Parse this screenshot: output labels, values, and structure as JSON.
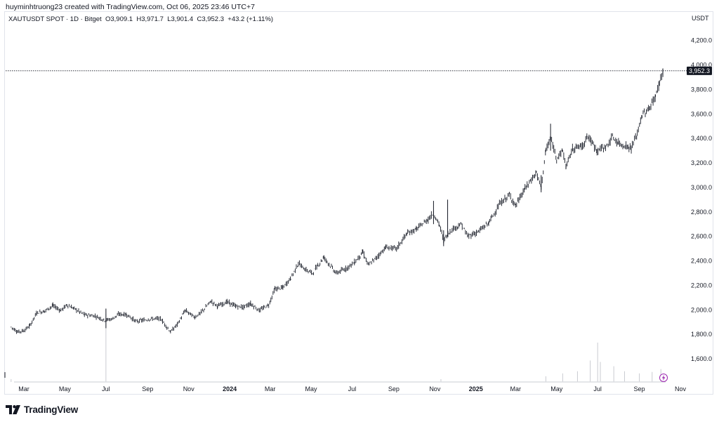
{
  "header": {
    "author_line": "huyminhtruong23 created with TradingView.com, Oct 06, 2025 23:46 UTC+7",
    "symbol": "XAUTUSDT SPOT · 1D · Bitget",
    "open": "O3,909.1",
    "high": "H3,971.7",
    "low": "L3,901.4",
    "close": "C3,952.3",
    "change": "+43.2 (+1.11%)"
  },
  "footer": {
    "brand": "TradingView"
  },
  "colors": {
    "candle": "#131722",
    "price_label_bg": "#131722",
    "volume": "#c9cbd1",
    "flash_icon": "#9c27b0"
  },
  "icons": {
    "brand_logo": "tradingview-logo-icon",
    "flash": "lightning-icon"
  },
  "chart_data": {
    "type": "line",
    "title": "",
    "currency": "USDT",
    "yticks": [
      "4,200.0",
      "4,000.0",
      "3,800.0",
      "3,600.0",
      "3,400.0",
      "3,200.0",
      "3,000.0",
      "2,800.0",
      "2,600.0",
      "2,400.0",
      "2,200.0",
      "2,000.0",
      "1,800.0",
      "1,600.0"
    ],
    "ytick_values": [
      4200,
      4000,
      3800,
      3600,
      3400,
      3200,
      3000,
      2800,
      2600,
      2400,
      2200,
      2000,
      1800,
      1600
    ],
    "ylim": [
      1475,
      4430
    ],
    "xticks": [
      {
        "label": "Mar",
        "bold": false,
        "date": "2023-03-01"
      },
      {
        "label": "May",
        "bold": false,
        "date": "2023-05-01"
      },
      {
        "label": "Jul",
        "bold": false,
        "date": "2023-07-01"
      },
      {
        "label": "Sep",
        "bold": false,
        "date": "2023-09-01"
      },
      {
        "label": "Nov",
        "bold": false,
        "date": "2023-11-01"
      },
      {
        "label": "2024",
        "bold": true,
        "date": "2024-01-01"
      },
      {
        "label": "Mar",
        "bold": false,
        "date": "2024-03-01"
      },
      {
        "label": "May",
        "bold": false,
        "date": "2024-05-01"
      },
      {
        "label": "Jul",
        "bold": false,
        "date": "2024-07-01"
      },
      {
        "label": "Sep",
        "bold": false,
        "date": "2024-09-01"
      },
      {
        "label": "Nov",
        "bold": false,
        "date": "2024-11-01"
      },
      {
        "label": "2025",
        "bold": true,
        "date": "2025-01-01"
      },
      {
        "label": "Mar",
        "bold": false,
        "date": "2025-03-01"
      },
      {
        "label": "May",
        "bold": false,
        "date": "2025-05-01"
      },
      {
        "label": "Jul",
        "bold": false,
        "date": "2025-07-01"
      },
      {
        "label": "Sep",
        "bold": false,
        "date": "2025-09-01"
      },
      {
        "label": "Nov",
        "bold": false,
        "date": "2025-11-01"
      }
    ],
    "last_price": 3952.3,
    "last_price_label": "3,952.3",
    "series": [
      {
        "values": [
          {
            "x": "2023-02-10",
            "y": 1860
          },
          {
            "x": "2023-02-20",
            "y": 1820
          },
          {
            "x": "2023-03-01",
            "y": 1830
          },
          {
            "x": "2023-03-10",
            "y": 1870
          },
          {
            "x": "2023-03-20",
            "y": 1975
          },
          {
            "x": "2023-04-01",
            "y": 1990
          },
          {
            "x": "2023-04-13",
            "y": 2035
          },
          {
            "x": "2023-04-25",
            "y": 1995
          },
          {
            "x": "2023-05-04",
            "y": 2040
          },
          {
            "x": "2023-05-15",
            "y": 2010
          },
          {
            "x": "2023-05-30",
            "y": 1960
          },
          {
            "x": "2023-06-15",
            "y": 1950
          },
          {
            "x": "2023-06-29",
            "y": 1915
          },
          {
            "x": "2023-07-10",
            "y": 1925
          },
          {
            "x": "2023-07-20",
            "y": 1965
          },
          {
            "x": "2023-08-01",
            "y": 1960
          },
          {
            "x": "2023-08-15",
            "y": 1905
          },
          {
            "x": "2023-08-25",
            "y": 1915
          },
          {
            "x": "2023-09-05",
            "y": 1925
          },
          {
            "x": "2023-09-20",
            "y": 1930
          },
          {
            "x": "2023-10-05",
            "y": 1820
          },
          {
            "x": "2023-10-15",
            "y": 1880
          },
          {
            "x": "2023-10-27",
            "y": 1995
          },
          {
            "x": "2023-11-10",
            "y": 1940
          },
          {
            "x": "2023-11-20",
            "y": 1980
          },
          {
            "x": "2023-12-04",
            "y": 2070
          },
          {
            "x": "2023-12-14",
            "y": 2030
          },
          {
            "x": "2023-12-28",
            "y": 2065
          },
          {
            "x": "2024-01-10",
            "y": 2030
          },
          {
            "x": "2024-01-20",
            "y": 2020
          },
          {
            "x": "2024-02-01",
            "y": 2050
          },
          {
            "x": "2024-02-14",
            "y": 1995
          },
          {
            "x": "2024-02-28",
            "y": 2040
          },
          {
            "x": "2024-03-08",
            "y": 2170
          },
          {
            "x": "2024-03-20",
            "y": 2180
          },
          {
            "x": "2024-04-01",
            "y": 2260
          },
          {
            "x": "2024-04-12",
            "y": 2380
          },
          {
            "x": "2024-04-22",
            "y": 2330
          },
          {
            "x": "2024-05-03",
            "y": 2300
          },
          {
            "x": "2024-05-20",
            "y": 2430
          },
          {
            "x": "2024-06-07",
            "y": 2300
          },
          {
            "x": "2024-06-20",
            "y": 2330
          },
          {
            "x": "2024-07-05",
            "y": 2390
          },
          {
            "x": "2024-07-17",
            "y": 2470
          },
          {
            "x": "2024-07-25",
            "y": 2365
          },
          {
            "x": "2024-08-05",
            "y": 2420
          },
          {
            "x": "2024-08-20",
            "y": 2510
          },
          {
            "x": "2024-09-05",
            "y": 2500
          },
          {
            "x": "2024-09-20",
            "y": 2620
          },
          {
            "x": "2024-10-05",
            "y": 2660
          },
          {
            "x": "2024-10-22",
            "y": 2740
          },
          {
            "x": "2024-10-30",
            "y": 2790
          },
          {
            "x": "2024-11-08",
            "y": 2690
          },
          {
            "x": "2024-11-14",
            "y": 2570
          },
          {
            "x": "2024-11-25",
            "y": 2650
          },
          {
            "x": "2024-12-10",
            "y": 2700
          },
          {
            "x": "2024-12-20",
            "y": 2600
          },
          {
            "x": "2025-01-05",
            "y": 2640
          },
          {
            "x": "2025-01-20",
            "y": 2710
          },
          {
            "x": "2025-02-05",
            "y": 2860
          },
          {
            "x": "2025-02-20",
            "y": 2940
          },
          {
            "x": "2025-03-01",
            "y": 2850
          },
          {
            "x": "2025-03-15",
            "y": 2990
          },
          {
            "x": "2025-04-01",
            "y": 3120
          },
          {
            "x": "2025-04-08",
            "y": 3000
          },
          {
            "x": "2025-04-15",
            "y": 3300
          },
          {
            "x": "2025-04-22",
            "y": 3400
          },
          {
            "x": "2025-05-01",
            "y": 3240
          },
          {
            "x": "2025-05-10",
            "y": 3300
          },
          {
            "x": "2025-05-15",
            "y": 3170
          },
          {
            "x": "2025-05-25",
            "y": 3320
          },
          {
            "x": "2025-06-10",
            "y": 3340
          },
          {
            "x": "2025-06-15",
            "y": 3430
          },
          {
            "x": "2025-06-30",
            "y": 3300
          },
          {
            "x": "2025-07-15",
            "y": 3340
          },
          {
            "x": "2025-07-23",
            "y": 3410
          },
          {
            "x": "2025-08-01",
            "y": 3360
          },
          {
            "x": "2025-08-15",
            "y": 3330
          },
          {
            "x": "2025-08-20",
            "y": 3320
          },
          {
            "x": "2025-08-29",
            "y": 3440
          },
          {
            "x": "2025-09-05",
            "y": 3590
          },
          {
            "x": "2025-09-15",
            "y": 3640
          },
          {
            "x": "2025-09-25",
            "y": 3740
          },
          {
            "x": "2025-10-01",
            "y": 3860
          },
          {
            "x": "2025-10-06",
            "y": 3952
          }
        ]
      }
    ],
    "volume": {
      "max": 100,
      "values": [
        {
          "x": "2023-02-10",
          "v": 4
        },
        {
          "x": "2023-07-01",
          "v": 95
        },
        {
          "x": "2024-11-10",
          "v": 4
        },
        {
          "x": "2025-04-15",
          "v": 8
        },
        {
          "x": "2025-05-10",
          "v": 12
        },
        {
          "x": "2025-06-01",
          "v": 15
        },
        {
          "x": "2025-06-20",
          "v": 30
        },
        {
          "x": "2025-07-01",
          "v": 55
        },
        {
          "x": "2025-07-05",
          "v": 28
        },
        {
          "x": "2025-07-25",
          "v": 22
        },
        {
          "x": "2025-08-10",
          "v": 15
        },
        {
          "x": "2025-09-01",
          "v": 12
        },
        {
          "x": "2025-09-20",
          "v": 14
        },
        {
          "x": "2025-10-03",
          "v": 18
        }
      ]
    }
  }
}
